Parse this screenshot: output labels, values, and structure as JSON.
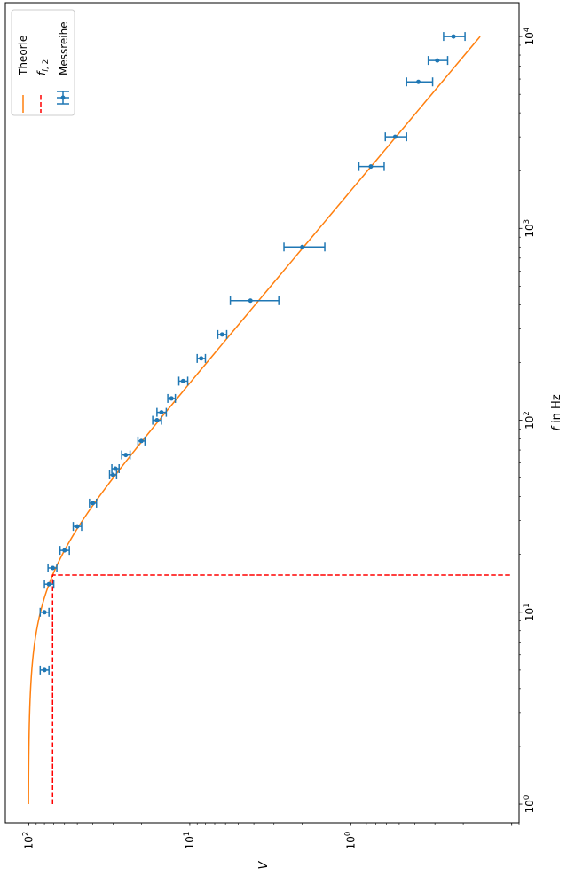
{
  "chart_data": {
    "type": "line",
    "orientation": "rotated 90 degrees counter-clockwise",
    "xlabel": "f in Hz",
    "ylabel": "V",
    "xscale": "log",
    "yscale": "log",
    "xlim": [
      0.8,
      15000
    ],
    "ylim": [
      0.09,
      140
    ],
    "x_ticks": [
      {
        "value": 1,
        "base": "10",
        "exp": "0"
      },
      {
        "value": 10,
        "base": "10",
        "exp": "1"
      },
      {
        "value": 100,
        "base": "10",
        "exp": "2"
      },
      {
        "value": 1000,
        "base": "10",
        "exp": "3"
      },
      {
        "value": 10000,
        "base": "10",
        "exp": "4"
      }
    ],
    "y_ticks": [
      {
        "value": 100,
        "base": "10",
        "exp": "2"
      },
      {
        "value": 10,
        "base": "10",
        "exp": "1"
      },
      {
        "value": 1,
        "base": "10",
        "exp": "0"
      }
    ],
    "legend": {
      "placement": "top-left",
      "entries": [
        {
          "label": "Theorie",
          "color": "#ff7f0e",
          "style": "solid"
        },
        {
          "label": "f_{l,2}",
          "color": "#ff0000",
          "style": "dashed"
        },
        {
          "label": "Messreihe",
          "color": "#1f77b4",
          "style": "errorbar"
        }
      ]
    },
    "series": [
      {
        "name": "Theorie",
        "kind": "line",
        "color": "#ff7f0e",
        "model": "V = V0 / sqrt(1 + (f / fl)^2)",
        "V0": 100.7,
        "fl": 15.6,
        "x_range": [
          1,
          10000
        ]
      },
      {
        "name": "f_{l,2}",
        "kind": "dashed",
        "color": "#ff0000",
        "x": [
          1,
          15.6,
          15.6
        ],
        "y": [
          71.2,
          71.2,
          0.1
        ]
      },
      {
        "name": "Messreihe",
        "kind": "errorbar",
        "color": "#1f77b4",
        "points": [
          {
            "x": 5,
            "y": 80,
            "yerr_low": 75,
            "yerr_high": 85
          },
          {
            "x": 10,
            "y": 80,
            "yerr_low": 75,
            "yerr_high": 85
          },
          {
            "x": 14,
            "y": 75,
            "yerr_low": 70,
            "yerr_high": 80
          },
          {
            "x": 17,
            "y": 71,
            "yerr_low": 67,
            "yerr_high": 76
          },
          {
            "x": 21,
            "y": 60,
            "yerr_low": 56,
            "yerr_high": 64
          },
          {
            "x": 28,
            "y": 50,
            "yerr_low": 47,
            "yerr_high": 53
          },
          {
            "x": 37,
            "y": 40,
            "yerr_low": 38,
            "yerr_high": 42
          },
          {
            "x": 52,
            "y": 30,
            "yerr_low": 28.5,
            "yerr_high": 31.5
          },
          {
            "x": 56,
            "y": 29,
            "yerr_low": 27.5,
            "yerr_high": 30.5
          },
          {
            "x": 66,
            "y": 25,
            "yerr_low": 23.5,
            "yerr_high": 26.5
          },
          {
            "x": 78,
            "y": 20,
            "yerr_low": 19,
            "yerr_high": 21
          },
          {
            "x": 100,
            "y": 16,
            "yerr_low": 15,
            "yerr_high": 17
          },
          {
            "x": 110,
            "y": 15,
            "yerr_low": 14,
            "yerr_high": 16
          },
          {
            "x": 130,
            "y": 13,
            "yerr_low": 12.3,
            "yerr_high": 13.7
          },
          {
            "x": 160,
            "y": 11,
            "yerr_low": 10.3,
            "yerr_high": 11.7
          },
          {
            "x": 210,
            "y": 8.5,
            "yerr_low": 8,
            "yerr_high": 9
          },
          {
            "x": 280,
            "y": 6.3,
            "yerr_low": 5.9,
            "yerr_high": 6.7
          },
          {
            "x": 420,
            "y": 4.2,
            "yerr_low": 2.8,
            "yerr_high": 5.6
          },
          {
            "x": 800,
            "y": 2.0,
            "yerr_low": 1.45,
            "yerr_high": 2.6
          },
          {
            "x": 2100,
            "y": 0.75,
            "yerr_low": 0.62,
            "yerr_high": 0.89
          },
          {
            "x": 3000,
            "y": 0.53,
            "yerr_low": 0.45,
            "yerr_high": 0.61
          },
          {
            "x": 5800,
            "y": 0.38,
            "yerr_low": 0.31,
            "yerr_high": 0.45
          },
          {
            "x": 7500,
            "y": 0.29,
            "yerr_low": 0.25,
            "yerr_high": 0.33
          },
          {
            "x": 10000,
            "y": 0.23,
            "yerr_low": 0.195,
            "yerr_high": 0.265
          }
        ]
      }
    ]
  }
}
